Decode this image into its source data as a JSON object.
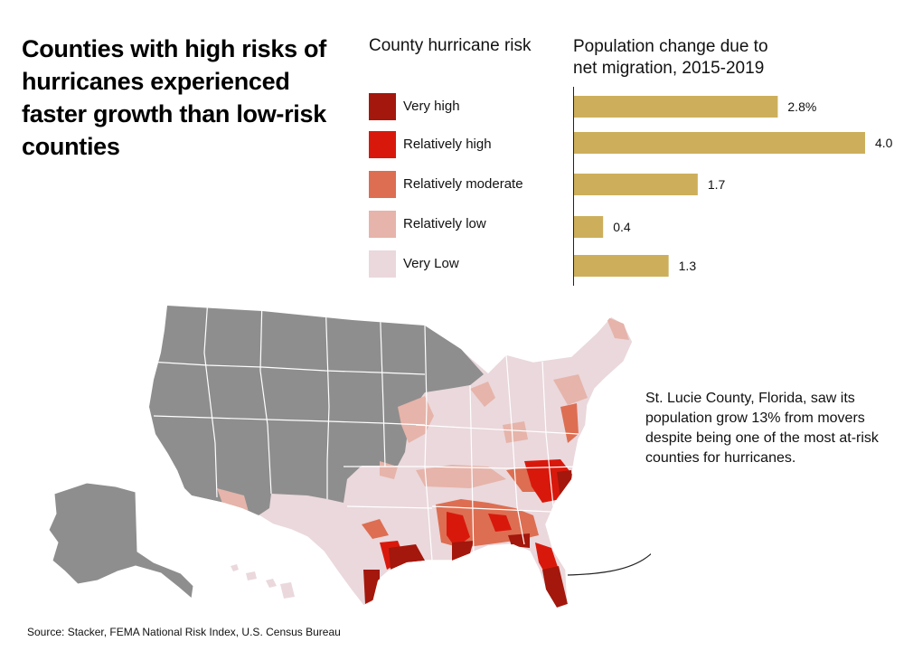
{
  "title": "Counties with high risks of hurricanes experienced faster growth than low-risk counties",
  "legend": {
    "title": "County hurricane risk",
    "items": [
      {
        "label": "Very high",
        "color": "#a3170c"
      },
      {
        "label": "Relatively high",
        "color": "#d9180c"
      },
      {
        "label": "Relatively moderate",
        "color": "#dd6e52"
      },
      {
        "label": "Relatively low",
        "color": "#e6b4aa"
      },
      {
        "label": "Very Low",
        "color": "#ead8dc"
      }
    ]
  },
  "bar_chart_title": {
    "line1": "Population change due to",
    "line2": "net migration, 2015-2019"
  },
  "chart_data": {
    "type": "bar",
    "orientation": "horizontal",
    "categories": [
      "Very high",
      "Relatively high",
      "Relatively moderate",
      "Relatively low",
      "Very Low"
    ],
    "values": [
      2.8,
      4.0,
      1.7,
      0.4,
      1.3
    ],
    "value_labels": [
      "2.8%",
      "4.0",
      "1.7",
      "0.4",
      "1.3"
    ],
    "bar_color": "#cdaf5b",
    "xlim": [
      0,
      4.0
    ],
    "title": "Population change due to net migration, 2015-2019"
  },
  "annotation": "St. Lucie County, Florida, saw its population grow 13% from movers despite being one of the most at-risk counties for hurricanes.",
  "source": "Source: Stacker, FEMA National Risk Index, U.S. Census Bureau",
  "map_colors": {
    "no_data": "#8e8e8e",
    "border": "#ffffff"
  }
}
